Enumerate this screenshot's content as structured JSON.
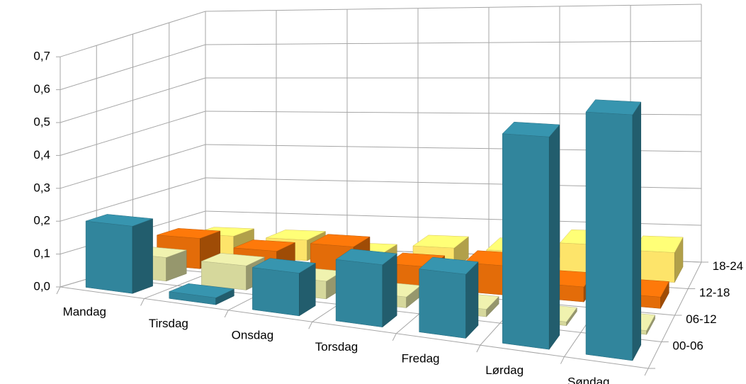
{
  "chart_data": {
    "type": "bar3d",
    "categories": [
      "Mandag",
      "Tirsdag",
      "Onsdag",
      "Torsdag",
      "Fredag",
      "Lørdag",
      "Søndag"
    ],
    "series": [
      {
        "name": "00-06",
        "color": "#31859c",
        "values": [
          0.2,
          0.02,
          0.12,
          0.17,
          0.17,
          0.55,
          0.62
        ]
      },
      {
        "name": "06-12",
        "color": "#d6d89c",
        "values": [
          0.07,
          0.07,
          0.05,
          0.03,
          0.02,
          0.01,
          0.01
        ]
      },
      {
        "name": "12-18",
        "color": "#e36c09",
        "values": [
          0.09,
          0.07,
          0.1,
          0.06,
          0.08,
          0.04,
          0.03
        ]
      },
      {
        "name": "18-24",
        "color": "#fde46a",
        "values": [
          0.06,
          0.06,
          0.03,
          0.06,
          0.06,
          0.09,
          0.08
        ]
      }
    ],
    "ylim": [
      0,
      0.7
    ],
    "yticks": [
      {
        "value": 0,
        "label": "0,0"
      },
      {
        "value": 0.1,
        "label": "0,1"
      },
      {
        "value": 0.2,
        "label": "0,2"
      },
      {
        "value": 0.3,
        "label": "0,3"
      },
      {
        "value": 0.4,
        "label": "0,4"
      },
      {
        "value": 0.5,
        "label": "0,5"
      },
      {
        "value": 0.6,
        "label": "0,6"
      },
      {
        "value": 0.7,
        "label": "0,7"
      }
    ],
    "grid": true
  }
}
